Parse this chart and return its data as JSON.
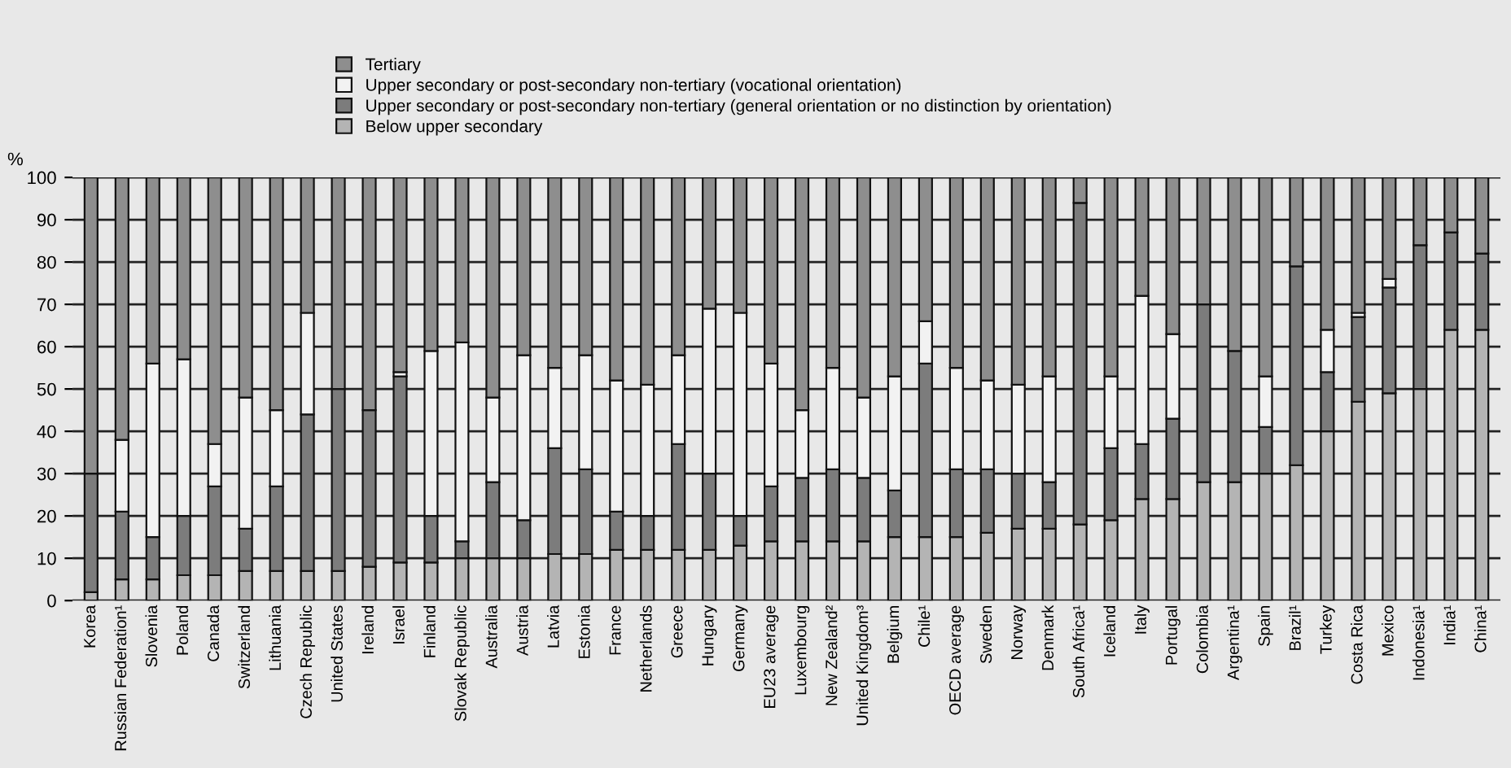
{
  "chart_data": {
    "type": "bar",
    "stacked": true,
    "ylabel": "%",
    "categories": [
      "Korea",
      "Russian Federation¹",
      "Slovenia",
      "Poland",
      "Canada",
      "Switzerland",
      "Lithuania",
      "Czech Republic",
      "United States",
      "Ireland",
      "Israel",
      "Finland",
      "Slovak Republic",
      "Australia",
      "Austria",
      "Latvia",
      "Estonia",
      "France",
      "Netherlands",
      "Greece",
      "Hungary",
      "Germany",
      "EU23 average",
      "Luxembourg",
      "New Zealand²",
      "United Kingdom³",
      "Belgium",
      "Chile¹",
      "OECD average",
      "Sweden",
      "Norway",
      "Denmark",
      "South Africa¹",
      "Iceland",
      "Italy",
      "Portugal",
      "Colombia",
      "Argentina¹",
      "Spain",
      "Brazil¹",
      "Turkey",
      "Costa Rica",
      "Mexico",
      "Indonesia¹",
      "India¹",
      "China¹"
    ],
    "series": [
      {
        "name": "Below upper secondary",
        "color": "#b4b4b4",
        "values": [
          2,
          5,
          5,
          6,
          6,
          7,
          7,
          7,
          7,
          8,
          9,
          9,
          10,
          10,
          10,
          11,
          11,
          12,
          12,
          12,
          12,
          13,
          14,
          14,
          14,
          14,
          15,
          15,
          15,
          16,
          17,
          17,
          18,
          19,
          24,
          24,
          28,
          28,
          30,
          32,
          40,
          47,
          49,
          50,
          64,
          64
        ]
      },
      {
        "name": "Upper secondary or post-secondary non-tertiary (general orientation or no distinction by orientation)",
        "color": "#7c7c7c",
        "values": [
          28,
          16,
          10,
          14,
          21,
          10,
          20,
          37,
          43,
          37,
          44,
          11,
          4,
          18,
          9,
          25,
          20,
          9,
          8,
          25,
          18,
          7,
          13,
          15,
          17,
          15,
          11,
          41,
          16,
          15,
          13,
          11,
          76,
          17,
          13,
          19,
          42,
          31,
          11,
          47,
          14,
          20,
          25,
          34,
          23,
          18
        ]
      },
      {
        "name": "Upper secondary or post-secondary non-tertiary (vocational orientation)",
        "color": "#f2f2f2",
        "values": [
          null,
          17,
          41,
          37,
          10,
          31,
          18,
          24,
          null,
          null,
          1,
          39,
          47,
          20,
          39,
          19,
          27,
          31,
          31,
          21,
          39,
          48,
          29,
          16,
          24,
          19,
          27,
          10,
          24,
          21,
          21,
          25,
          null,
          17,
          35,
          20,
          null,
          null,
          12,
          null,
          10,
          1,
          2,
          null,
          null,
          null
        ]
      },
      {
        "name": "Tertiary",
        "color": "#8e8e8e",
        "values": [
          70,
          62,
          44,
          43,
          63,
          52,
          55,
          32,
          50,
          55,
          46,
          41,
          39,
          52,
          42,
          45,
          42,
          48,
          49,
          42,
          31,
          32,
          44,
          55,
          45,
          52,
          47,
          34,
          45,
          48,
          49,
          47,
          6,
          47,
          28,
          37,
          30,
          41,
          47,
          21,
          36,
          32,
          24,
          16,
          13,
          18
        ]
      }
    ],
    "ylim": [
      0,
      100
    ],
    "yticks": [
      0,
      10,
      20,
      30,
      40,
      50,
      60,
      70,
      80,
      90,
      100
    ],
    "grid": "y",
    "legend": "top"
  }
}
